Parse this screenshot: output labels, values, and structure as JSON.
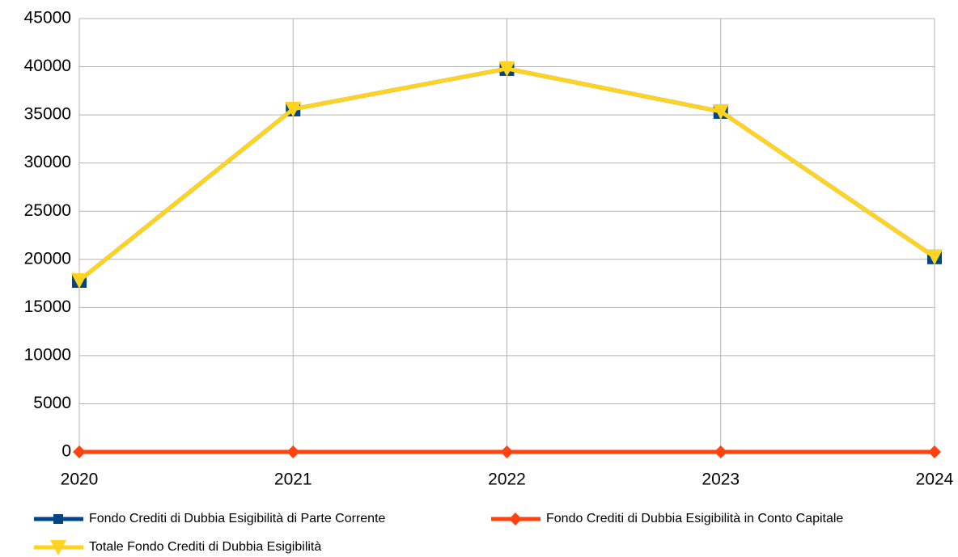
{
  "chart_data": {
    "type": "line",
    "categories": [
      "2020",
      "2021",
      "2022",
      "2023",
      "2024"
    ],
    "series": [
      {
        "name": "Fondo Crediti di Dubbia Esigibilità di Parte Corrente",
        "color": "#004586",
        "marker": "square",
        "values": [
          17800,
          35600,
          39800,
          35350,
          20250
        ]
      },
      {
        "name": "Fondo Crediti di Dubbia Esigibilità in Conto Capitale",
        "color": "#ff420e",
        "marker": "diamond",
        "values": [
          0,
          0,
          0,
          0,
          0
        ]
      },
      {
        "name": "Totale Fondo Crediti di Dubbia Esigibilità",
        "color": "#ffd320",
        "marker": "triangle-down",
        "values": [
          17800,
          35600,
          39800,
          35350,
          20250
        ]
      }
    ],
    "ylim": [
      0,
      45000
    ],
    "yticks": [
      0,
      5000,
      10000,
      15000,
      20000,
      25000,
      30000,
      35000,
      40000,
      45000
    ],
    "grid": true,
    "legend": "bottom"
  }
}
